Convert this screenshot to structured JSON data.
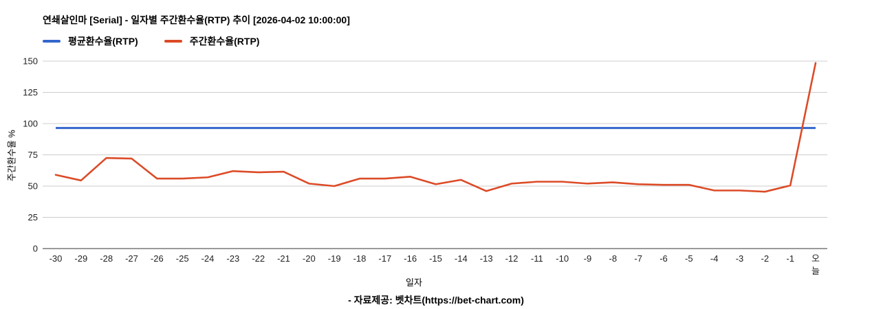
{
  "chart_data": {
    "type": "line",
    "title": "연쇄살인마 [Serial] - 일자별 주간환수율(RTP) 추이 [2026-04-02 10:00:00]",
    "xlabel": "일자",
    "ylabel": "주간환수율 %",
    "footer": "- 자료제공: 벳차트(https://bet-chart.com)",
    "legend_position": "top",
    "grid": true,
    "ylim": [
      0,
      150
    ],
    "yticks": [
      0,
      25,
      50,
      75,
      100,
      125,
      150
    ],
    "x_labels": [
      "-30",
      "-29",
      "-28",
      "-27",
      "-26",
      "-25",
      "-24",
      "-23",
      "-22",
      "-21",
      "-20",
      "-19",
      "-18",
      "-17",
      "-16",
      "-15",
      "-14",
      "-13",
      "-12",
      "-11",
      "-10",
      "-9",
      "-8",
      "-7",
      "-6",
      "-5",
      "-4",
      "-3",
      "-2",
      "-1",
      "오늘"
    ],
    "x_label_wrap_last": true,
    "series": [
      {
        "name": "평균환수율(RTP)",
        "color": "#3366cc",
        "style": "constant",
        "constant_value": 96.5
      },
      {
        "name": "주간환수율(RTP)",
        "color": "#dc4b27",
        "style": "line",
        "values": [
          59,
          54.5,
          72.5,
          72,
          56,
          56,
          57,
          62,
          61,
          61.5,
          52,
          50,
          56,
          56,
          57.5,
          51.5,
          55,
          46,
          52,
          53.5,
          53.5,
          52,
          53,
          51.5,
          51,
          51,
          46.5,
          46.5,
          45.5,
          50.5,
          148.5
        ]
      }
    ],
    "colors": {
      "grid_line": "#cccccc",
      "axis_line": "#333333",
      "tick_text": "#222222"
    }
  }
}
